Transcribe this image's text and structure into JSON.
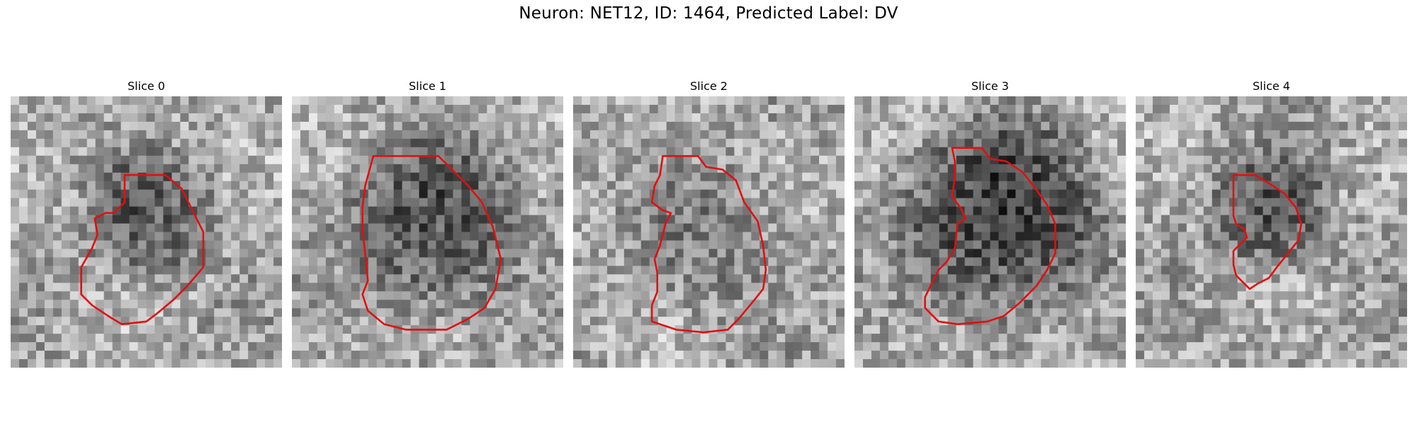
{
  "figure": {
    "title": "Neuron: NET12, ID: 1464, Predicted Label: DV",
    "contour_color": "#e01010",
    "panels": [
      {
        "label": "Slice 0",
        "seed": 11,
        "dark_cx": 0.52,
        "dark_cy": 0.45,
        "dark_r": 0.24,
        "dark_strength": 0.28,
        "contour": [
          [
            0.42,
            0.29
          ],
          [
            0.57,
            0.29
          ],
          [
            0.63,
            0.34
          ],
          [
            0.67,
            0.42
          ],
          [
            0.71,
            0.5
          ],
          [
            0.71,
            0.63
          ],
          [
            0.65,
            0.7
          ],
          [
            0.6,
            0.75
          ],
          [
            0.54,
            0.8
          ],
          [
            0.5,
            0.83
          ],
          [
            0.41,
            0.84
          ],
          [
            0.36,
            0.81
          ],
          [
            0.3,
            0.77
          ],
          [
            0.26,
            0.73
          ],
          [
            0.26,
            0.63
          ],
          [
            0.3,
            0.56
          ],
          [
            0.32,
            0.51
          ],
          [
            0.31,
            0.45
          ],
          [
            0.35,
            0.43
          ],
          [
            0.38,
            0.43
          ],
          [
            0.42,
            0.39
          ],
          [
            0.42,
            0.33
          ]
        ]
      },
      {
        "label": "Slice 1",
        "seed": 23,
        "dark_cx": 0.52,
        "dark_cy": 0.48,
        "dark_r": 0.32,
        "dark_strength": 0.34,
        "contour": [
          [
            0.3,
            0.22
          ],
          [
            0.54,
            0.22
          ],
          [
            0.59,
            0.27
          ],
          [
            0.65,
            0.33
          ],
          [
            0.7,
            0.39
          ],
          [
            0.74,
            0.48
          ],
          [
            0.77,
            0.6
          ],
          [
            0.75,
            0.71
          ],
          [
            0.71,
            0.78
          ],
          [
            0.65,
            0.82
          ],
          [
            0.57,
            0.86
          ],
          [
            0.49,
            0.86
          ],
          [
            0.42,
            0.86
          ],
          [
            0.34,
            0.84
          ],
          [
            0.28,
            0.79
          ],
          [
            0.26,
            0.73
          ],
          [
            0.28,
            0.68
          ],
          [
            0.27,
            0.58
          ],
          [
            0.26,
            0.49
          ],
          [
            0.26,
            0.41
          ],
          [
            0.27,
            0.33
          ]
        ]
      },
      {
        "label": "Slice 2",
        "seed": 37,
        "dark_cx": 0.52,
        "dark_cy": 0.52,
        "dark_r": 0.28,
        "dark_strength": 0.14,
        "contour": [
          [
            0.33,
            0.22
          ],
          [
            0.46,
            0.22
          ],
          [
            0.49,
            0.26
          ],
          [
            0.55,
            0.27
          ],
          [
            0.6,
            0.31
          ],
          [
            0.63,
            0.39
          ],
          [
            0.68,
            0.46
          ],
          [
            0.7,
            0.55
          ],
          [
            0.71,
            0.64
          ],
          [
            0.7,
            0.71
          ],
          [
            0.66,
            0.76
          ],
          [
            0.61,
            0.82
          ],
          [
            0.57,
            0.86
          ],
          [
            0.48,
            0.87
          ],
          [
            0.38,
            0.86
          ],
          [
            0.29,
            0.83
          ],
          [
            0.29,
            0.77
          ],
          [
            0.31,
            0.72
          ],
          [
            0.31,
            0.65
          ],
          [
            0.3,
            0.6
          ],
          [
            0.32,
            0.55
          ],
          [
            0.34,
            0.47
          ],
          [
            0.36,
            0.43
          ],
          [
            0.33,
            0.42
          ],
          [
            0.29,
            0.39
          ],
          [
            0.3,
            0.33
          ],
          [
            0.32,
            0.29
          ]
        ]
      },
      {
        "label": "Slice 3",
        "seed": 51,
        "dark_cx": 0.55,
        "dark_cy": 0.45,
        "dark_r": 0.36,
        "dark_strength": 0.42,
        "contour": [
          [
            0.36,
            0.19
          ],
          [
            0.47,
            0.19
          ],
          [
            0.5,
            0.23
          ],
          [
            0.56,
            0.24
          ],
          [
            0.62,
            0.28
          ],
          [
            0.66,
            0.33
          ],
          [
            0.71,
            0.4
          ],
          [
            0.74,
            0.47
          ],
          [
            0.74,
            0.58
          ],
          [
            0.71,
            0.64
          ],
          [
            0.67,
            0.7
          ],
          [
            0.61,
            0.76
          ],
          [
            0.55,
            0.81
          ],
          [
            0.49,
            0.83
          ],
          [
            0.38,
            0.84
          ],
          [
            0.31,
            0.83
          ],
          [
            0.26,
            0.78
          ],
          [
            0.26,
            0.74
          ],
          [
            0.29,
            0.68
          ],
          [
            0.31,
            0.64
          ],
          [
            0.34,
            0.61
          ],
          [
            0.37,
            0.56
          ],
          [
            0.38,
            0.47
          ],
          [
            0.41,
            0.45
          ],
          [
            0.39,
            0.41
          ],
          [
            0.36,
            0.37
          ],
          [
            0.37,
            0.3
          ],
          [
            0.37,
            0.24
          ]
        ]
      },
      {
        "label": "Slice 4",
        "seed": 67,
        "dark_cx": 0.5,
        "dark_cy": 0.43,
        "dark_r": 0.22,
        "dark_strength": 0.32,
        "contour": [
          [
            0.36,
            0.29
          ],
          [
            0.44,
            0.29
          ],
          [
            0.49,
            0.32
          ],
          [
            0.55,
            0.36
          ],
          [
            0.59,
            0.41
          ],
          [
            0.61,
            0.47
          ],
          [
            0.6,
            0.53
          ],
          [
            0.56,
            0.58
          ],
          [
            0.52,
            0.63
          ],
          [
            0.49,
            0.67
          ],
          [
            0.45,
            0.69
          ],
          [
            0.42,
            0.71
          ],
          [
            0.41,
            0.7
          ],
          [
            0.39,
            0.68
          ],
          [
            0.37,
            0.66
          ],
          [
            0.36,
            0.62
          ],
          [
            0.36,
            0.57
          ],
          [
            0.39,
            0.54
          ],
          [
            0.41,
            0.52
          ],
          [
            0.4,
            0.49
          ],
          [
            0.37,
            0.47
          ],
          [
            0.36,
            0.44
          ],
          [
            0.36,
            0.38
          ],
          [
            0.36,
            0.33
          ]
        ]
      }
    ]
  }
}
